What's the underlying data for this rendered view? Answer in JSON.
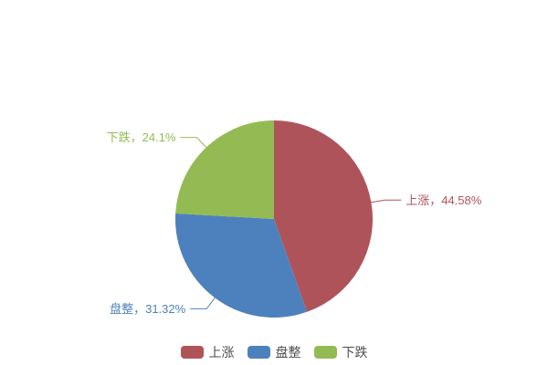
{
  "background_color": "#ffffff",
  "chart_data": {
    "type": "pie",
    "title": "",
    "unit": "%",
    "start_angle_deg": 0,
    "direction": "clockwise",
    "label_position": "outside",
    "legend_position": "bottom-center",
    "legend": [
      "上涨",
      "盘整",
      "下跌"
    ],
    "slices": [
      {
        "key": "rise",
        "label": "上涨",
        "value": 44.58,
        "callout": "上涨，44.58%",
        "color": "#af535b"
      },
      {
        "key": "sideways",
        "label": "盘整",
        "value": 31.32,
        "callout": "盘整，31.32%",
        "color": "#4d81bd"
      },
      {
        "key": "decline",
        "label": "下跌",
        "value": 24.1,
        "callout": "下跌，24.1%",
        "color": "#94bb53"
      }
    ]
  },
  "layout_colors": {
    "legend_text": "#4d4d4d"
  }
}
